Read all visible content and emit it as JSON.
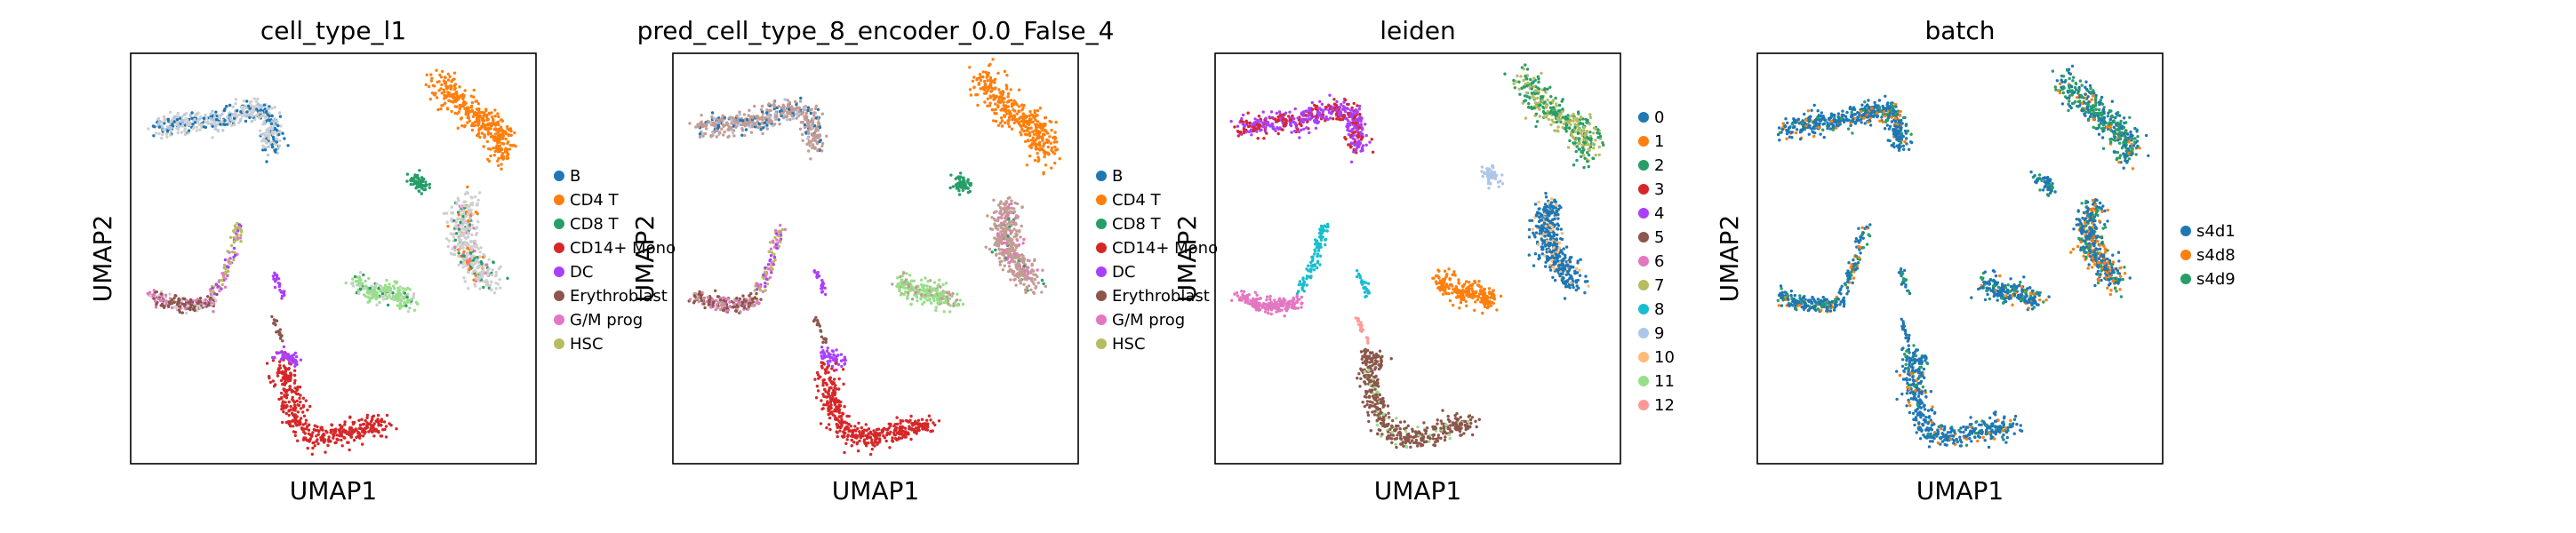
{
  "chart_data": [
    {
      "type": "scatter",
      "title": "cell_type_l1",
      "xlabel": "UMAP1",
      "ylabel": "UMAP2",
      "grid": false,
      "legend_position": "right",
      "categories": [
        {
          "name": "B",
          "color": "#1f77b4"
        },
        {
          "name": "CD4 T",
          "color": "#ff7f0e"
        },
        {
          "name": "CD8 T",
          "color": "#279e68"
        },
        {
          "name": "CD14+ Mono",
          "color": "#d62728"
        },
        {
          "name": "DC",
          "color": "#aa40fc"
        },
        {
          "name": "Erythroblast",
          "color": "#8c564b"
        },
        {
          "name": "G/M prog",
          "color": "#e377c2"
        },
        {
          "name": "HSC",
          "color": "#b5bd61"
        }
      ]
    },
    {
      "type": "scatter",
      "title": "pred_cell_type_8_encoder_0.0_False_4",
      "xlabel": "UMAP1",
      "ylabel": "UMAP2",
      "grid": false,
      "legend_position": "right",
      "categories": [
        {
          "name": "B",
          "color": "#1f77b4"
        },
        {
          "name": "CD4 T",
          "color": "#ff7f0e"
        },
        {
          "name": "CD8 T",
          "color": "#279e68"
        },
        {
          "name": "CD14+ Mono",
          "color": "#d62728"
        },
        {
          "name": "DC",
          "color": "#aa40fc"
        },
        {
          "name": "Erythroblast",
          "color": "#8c564b"
        },
        {
          "name": "G/M prog",
          "color": "#e377c2"
        },
        {
          "name": "HSC",
          "color": "#b5bd61"
        }
      ]
    },
    {
      "type": "scatter",
      "title": "leiden",
      "xlabel": "UMAP1",
      "ylabel": "UMAP2",
      "grid": false,
      "legend_position": "right",
      "categories": [
        {
          "name": "0",
          "color": "#1f77b4"
        },
        {
          "name": "1",
          "color": "#ff7f0e"
        },
        {
          "name": "2",
          "color": "#279e68"
        },
        {
          "name": "3",
          "color": "#d62728"
        },
        {
          "name": "4",
          "color": "#aa40fc"
        },
        {
          "name": "5",
          "color": "#8c564b"
        },
        {
          "name": "6",
          "color": "#e377c2"
        },
        {
          "name": "7",
          "color": "#b5bd61"
        },
        {
          "name": "8",
          "color": "#17becf"
        },
        {
          "name": "9",
          "color": "#aec7e8"
        },
        {
          "name": "10",
          "color": "#ffbb78"
        },
        {
          "name": "11",
          "color": "#98df8a"
        },
        {
          "name": "12",
          "color": "#ff9896"
        }
      ]
    },
    {
      "type": "scatter",
      "title": "batch",
      "xlabel": "UMAP1",
      "ylabel": "UMAP2",
      "grid": false,
      "legend_position": "right",
      "categories": [
        {
          "name": "s4d1",
          "color": "#1f77b4"
        },
        {
          "name": "s4d8",
          "color": "#ff7f0e"
        },
        {
          "name": "s4d9",
          "color": "#279e68"
        }
      ]
    }
  ]
}
